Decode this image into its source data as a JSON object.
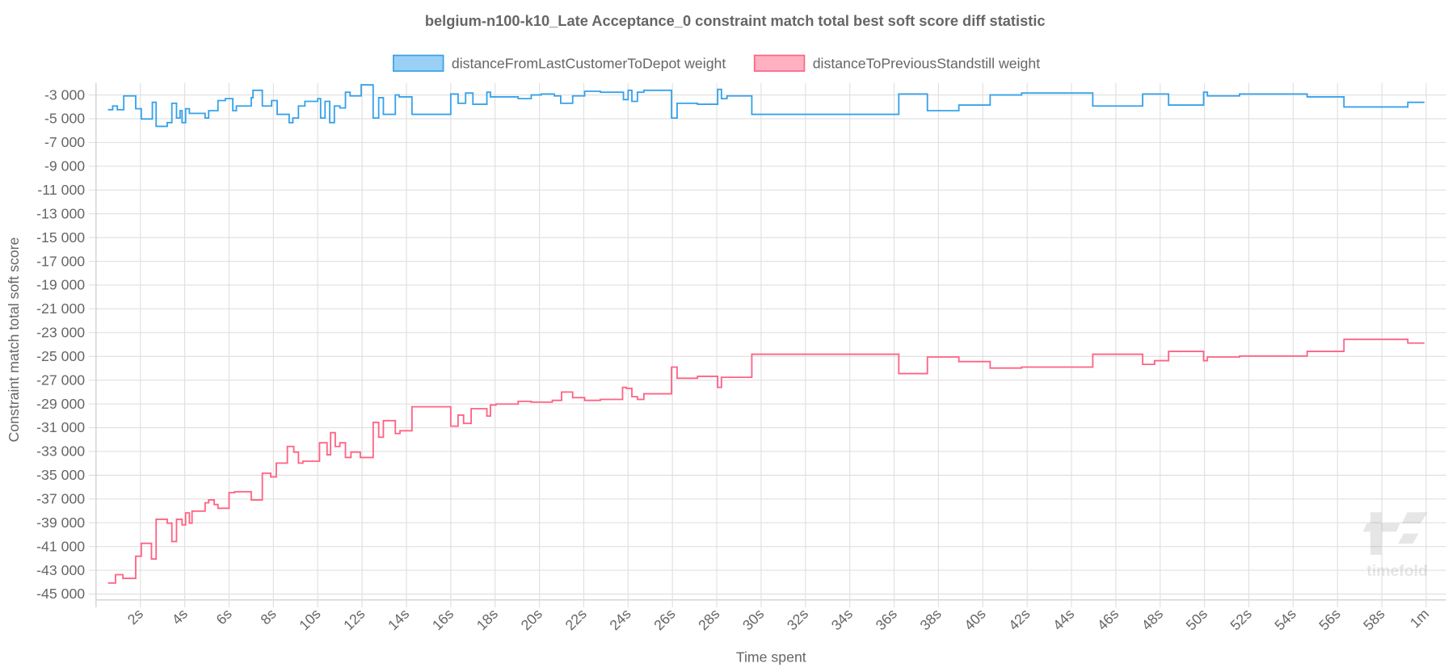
{
  "chart_data": {
    "type": "line",
    "step": true,
    "title": "belgium-n100-k10_Late Acceptance_0 constraint match total best soft score diff statistic",
    "xlabel": "Time spent",
    "ylabel": "Constraint match total soft score",
    "xlim": [
      0,
      60.9
    ],
    "ylim": [
      -45500,
      -2000
    ],
    "grid": true,
    "legend_position": "top",
    "x_ticks": [
      "2s",
      "4s",
      "6s",
      "8s",
      "10s",
      "12s",
      "14s",
      "16s",
      "18s",
      "20s",
      "22s",
      "24s",
      "26s",
      "28s",
      "30s",
      "32s",
      "34s",
      "36s",
      "38s",
      "40s",
      "42s",
      "44s",
      "46s",
      "48s",
      "50s",
      "52s",
      "54s",
      "56s",
      "58s",
      "1m"
    ],
    "x_tick_values": [
      2,
      4,
      6,
      8,
      10,
      12,
      14,
      16,
      18,
      20,
      22,
      24,
      26,
      28,
      30,
      32,
      34,
      36,
      38,
      40,
      42,
      44,
      46,
      48,
      50,
      52,
      54,
      56,
      58,
      60
    ],
    "y_ticks": [
      "-3 000",
      "-5 000",
      "-7 000",
      "-9 000",
      "-11 000",
      "-13 000",
      "-15 000",
      "-17 000",
      "-19 000",
      "-21 000",
      "-23 000",
      "-25 000",
      "-27 000",
      "-29 000",
      "-31 000",
      "-33 000",
      "-35 000",
      "-37 000",
      "-39 000",
      "-41 000",
      "-43 000",
      "-45 000"
    ],
    "y_tick_values": [
      -3000,
      -5000,
      -7000,
      -9000,
      -11000,
      -13000,
      -15000,
      -17000,
      -19000,
      -21000,
      -23000,
      -25000,
      -27000,
      -29000,
      -31000,
      -33000,
      -35000,
      -37000,
      -39000,
      -41000,
      -43000,
      -45000
    ],
    "series": [
      {
        "name": "distanceFromLastCustomerToDepot weight",
        "color": "#36a2eb",
        "fill": "#9ad0f5",
        "end_x": 59.92,
        "points": [
          [
            0.54,
            -4240
          ],
          [
            0.75,
            -3930
          ],
          [
            0.96,
            -4240
          ],
          [
            1.25,
            -3080
          ],
          [
            1.79,
            -4160
          ],
          [
            2.04,
            -5020
          ],
          [
            2.54,
            -3620
          ],
          [
            2.71,
            -5640
          ],
          [
            3.21,
            -5330
          ],
          [
            3.42,
            -3700
          ],
          [
            3.63,
            -4940
          ],
          [
            3.79,
            -4320
          ],
          [
            3.88,
            -5330
          ],
          [
            4.04,
            -4160
          ],
          [
            4.21,
            -4550
          ],
          [
            4.92,
            -4940
          ],
          [
            5.08,
            -4320
          ],
          [
            5.5,
            -3470
          ],
          [
            5.83,
            -3310
          ],
          [
            6.17,
            -4320
          ],
          [
            6.33,
            -3930
          ],
          [
            7.0,
            -3230
          ],
          [
            7.08,
            -2610
          ],
          [
            7.5,
            -3930
          ],
          [
            7.92,
            -3470
          ],
          [
            8.17,
            -4630
          ],
          [
            8.71,
            -5330
          ],
          [
            8.88,
            -4940
          ],
          [
            9.13,
            -3930
          ],
          [
            9.42,
            -3540
          ],
          [
            10.0,
            -3310
          ],
          [
            10.13,
            -4940
          ],
          [
            10.33,
            -3540
          ],
          [
            10.54,
            -5330
          ],
          [
            10.75,
            -3930
          ],
          [
            11.0,
            -4090
          ],
          [
            11.25,
            -2770
          ],
          [
            11.46,
            -3080
          ],
          [
            11.96,
            -2150
          ],
          [
            12.5,
            -4940
          ],
          [
            12.75,
            -3230
          ],
          [
            12.96,
            -4630
          ],
          [
            13.5,
            -3000
          ],
          [
            13.67,
            -3160
          ],
          [
            14.25,
            -4630
          ],
          [
            16.0,
            -2920
          ],
          [
            16.33,
            -3700
          ],
          [
            16.67,
            -2840
          ],
          [
            17.0,
            -3780
          ],
          [
            17.63,
            -2770
          ],
          [
            17.79,
            -3160
          ],
          [
            19.04,
            -3310
          ],
          [
            19.63,
            -3000
          ],
          [
            20.08,
            -2920
          ],
          [
            20.67,
            -3080
          ],
          [
            20.96,
            -3700
          ],
          [
            21.5,
            -3080
          ],
          [
            22.04,
            -2690
          ],
          [
            22.75,
            -2770
          ],
          [
            23.79,
            -3390
          ],
          [
            24.0,
            -2610
          ],
          [
            24.17,
            -3540
          ],
          [
            24.42,
            -2770
          ],
          [
            24.71,
            -2610
          ],
          [
            25.96,
            -4940
          ],
          [
            26.21,
            -3700
          ],
          [
            27.13,
            -3780
          ],
          [
            28.04,
            -2530
          ],
          [
            28.21,
            -3310
          ],
          [
            28.46,
            -3080
          ],
          [
            29.58,
            -4630
          ],
          [
            36.21,
            -2920
          ],
          [
            37.5,
            -4320
          ],
          [
            38.92,
            -3850
          ],
          [
            40.33,
            -3000
          ],
          [
            41.75,
            -2840
          ],
          [
            44.96,
            -3930
          ],
          [
            47.21,
            -2920
          ],
          [
            48.38,
            -3850
          ],
          [
            49.96,
            -2770
          ],
          [
            50.13,
            -3080
          ],
          [
            51.58,
            -2920
          ],
          [
            54.63,
            -3160
          ],
          [
            56.29,
            -4010
          ],
          [
            59.17,
            -3620
          ]
        ]
      },
      {
        "name": "distanceToPreviousStandstill weight",
        "color": "#ff6384",
        "fill": "#ffb1c1",
        "end_x": 59.92,
        "points": [
          [
            0.54,
            -44070
          ],
          [
            0.88,
            -43370
          ],
          [
            1.21,
            -43680
          ],
          [
            1.79,
            -41820
          ],
          [
            2.04,
            -40730
          ],
          [
            2.5,
            -42050
          ],
          [
            2.71,
            -38710
          ],
          [
            3.21,
            -39030
          ],
          [
            3.42,
            -40580
          ],
          [
            3.63,
            -38710
          ],
          [
            3.88,
            -39180
          ],
          [
            4.04,
            -38170
          ],
          [
            4.21,
            -39030
          ],
          [
            4.33,
            -38020
          ],
          [
            4.92,
            -37320
          ],
          [
            5.08,
            -37080
          ],
          [
            5.33,
            -37470
          ],
          [
            5.5,
            -37780
          ],
          [
            6.0,
            -36460
          ],
          [
            6.25,
            -36390
          ],
          [
            7.0,
            -37080
          ],
          [
            7.5,
            -34830
          ],
          [
            7.88,
            -35140
          ],
          [
            8.13,
            -33980
          ],
          [
            8.63,
            -32580
          ],
          [
            8.92,
            -33050
          ],
          [
            9.13,
            -33980
          ],
          [
            9.33,
            -33820
          ],
          [
            10.08,
            -32270
          ],
          [
            10.42,
            -33280
          ],
          [
            10.58,
            -31420
          ],
          [
            10.79,
            -32580
          ],
          [
            11.0,
            -32270
          ],
          [
            11.25,
            -33510
          ],
          [
            11.5,
            -33050
          ],
          [
            11.92,
            -33510
          ],
          [
            12.5,
            -30560
          ],
          [
            12.75,
            -31800
          ],
          [
            12.96,
            -30410
          ],
          [
            13.5,
            -31490
          ],
          [
            13.71,
            -31260
          ],
          [
            14.25,
            -29240
          ],
          [
            16.0,
            -30870
          ],
          [
            16.33,
            -29940
          ],
          [
            16.58,
            -30640
          ],
          [
            16.92,
            -29400
          ],
          [
            17.63,
            -30020
          ],
          [
            17.79,
            -29090
          ],
          [
            18.04,
            -29010
          ],
          [
            19.04,
            -28780
          ],
          [
            19.63,
            -28850
          ],
          [
            20.58,
            -28700
          ],
          [
            21.0,
            -28000
          ],
          [
            21.5,
            -28470
          ],
          [
            22.04,
            -28700
          ],
          [
            22.75,
            -28620
          ],
          [
            23.75,
            -27610
          ],
          [
            23.92,
            -27690
          ],
          [
            24.17,
            -28390
          ],
          [
            24.42,
            -28620
          ],
          [
            24.71,
            -28150
          ],
          [
            25.96,
            -25900
          ],
          [
            26.21,
            -26840
          ],
          [
            27.13,
            -26680
          ],
          [
            28.04,
            -27610
          ],
          [
            28.21,
            -26760
          ],
          [
            29.58,
            -24820
          ],
          [
            36.21,
            -26450
          ],
          [
            37.5,
            -25050
          ],
          [
            38.92,
            -25440
          ],
          [
            40.33,
            -25980
          ],
          [
            41.75,
            -25900
          ],
          [
            44.96,
            -24820
          ],
          [
            47.21,
            -25670
          ],
          [
            47.75,
            -25360
          ],
          [
            48.38,
            -24580
          ],
          [
            49.96,
            -25360
          ],
          [
            50.13,
            -25050
          ],
          [
            51.58,
            -24970
          ],
          [
            54.63,
            -24580
          ],
          [
            56.29,
            -23570
          ],
          [
            59.17,
            -23880
          ]
        ]
      }
    ]
  },
  "watermark": "timefold"
}
